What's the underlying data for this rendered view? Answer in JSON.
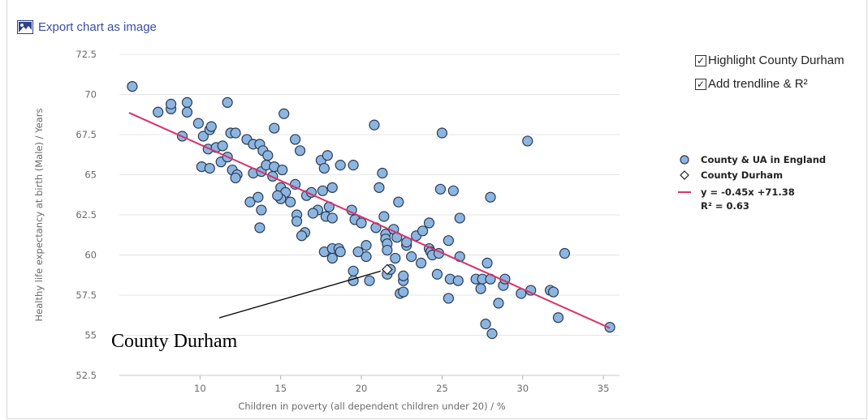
{
  "toolbar": {
    "export_label": "Export chart as image",
    "export_icon": "image-icon"
  },
  "options": [
    {
      "label": "Highlight County Durham",
      "checked": true,
      "check": "✓"
    },
    {
      "label": "Add trendline & R²",
      "checked": true,
      "check": "✓"
    }
  ],
  "legend": {
    "counties": "County & UA in England",
    "highlight": "County Durham",
    "trend_eq": "y = -0.45x +71.38",
    "trend_r2": "R² = 0.63"
  },
  "annotation": "County Durham",
  "colors": {
    "point_fill": "#8cb6e0",
    "point_stroke": "#2a3a55",
    "trend": "#d8336b",
    "grid": "#e4e4e4",
    "link": "#3a4fa0"
  },
  "chart_data": {
    "type": "scatter",
    "xlabel": "Children in poverty (all dependent children under 20) / %",
    "ylabel": "Healthy life expectancy at birth (Male) / Years",
    "xlim": [
      5,
      36
    ],
    "ylim": [
      52.5,
      72.5
    ],
    "xticks": [
      10,
      15,
      20,
      25,
      30,
      35
    ],
    "yticks": [
      52.5,
      55,
      57.5,
      60,
      62.5,
      65,
      67.5,
      70,
      72.5
    ],
    "grid": "horizontal",
    "legend_position": "right",
    "trendline": {
      "slope": -0.45,
      "intercept": 71.38,
      "r2": 0.63,
      "x_range": [
        5.6,
        35.4
      ]
    },
    "highlight_point": {
      "name": "County Durham",
      "x": 21.6,
      "y": 59.1
    },
    "series": [
      {
        "name": "County & UA in England",
        "points": [
          [
            5.8,
            70.5
          ],
          [
            7.4,
            68.9
          ],
          [
            8.2,
            69.1
          ],
          [
            8.2,
            69.4
          ],
          [
            8.9,
            67.4
          ],
          [
            9.2,
            69.5
          ],
          [
            9.2,
            68.9
          ],
          [
            9.9,
            68.2
          ],
          [
            10.2,
            67.4
          ],
          [
            10.6,
            67.8
          ],
          [
            10.7,
            68.0
          ],
          [
            10.5,
            66.6
          ],
          [
            11.0,
            66.7
          ],
          [
            11.4,
            66.8
          ],
          [
            11.3,
            65.8
          ],
          [
            11.7,
            69.5
          ],
          [
            11.7,
            66.1
          ],
          [
            11.9,
            67.6
          ],
          [
            12.2,
            67.6
          ],
          [
            12.0,
            65.3
          ],
          [
            12.3,
            65.0
          ],
          [
            12.2,
            64.8
          ],
          [
            10.1,
            65.5
          ],
          [
            10.6,
            65.4
          ],
          [
            12.9,
            67.2
          ],
          [
            13.3,
            66.9
          ],
          [
            13.7,
            66.9
          ],
          [
            13.9,
            66.5
          ],
          [
            14.2,
            66.2
          ],
          [
            14.6,
            67.9
          ],
          [
            13.3,
            65.1
          ],
          [
            13.8,
            65.2
          ],
          [
            14.1,
            65.6
          ],
          [
            14.6,
            65.5
          ],
          [
            15.1,
            65.3
          ],
          [
            14.5,
            64.9
          ],
          [
            15.0,
            64.2
          ],
          [
            15.3,
            63.9
          ],
          [
            15.0,
            63.5
          ],
          [
            14.8,
            63.7
          ],
          [
            15.2,
            68.8
          ],
          [
            13.1,
            63.3
          ],
          [
            13.6,
            63.6
          ],
          [
            13.8,
            62.8
          ],
          [
            15.6,
            63.3
          ],
          [
            15.9,
            67.2
          ],
          [
            16.2,
            66.5
          ],
          [
            17.5,
            65.9
          ],
          [
            17.7,
            65.4
          ],
          [
            17.9,
            66.2
          ],
          [
            15.9,
            64.4
          ],
          [
            16.6,
            63.7
          ],
          [
            16.5,
            61.4
          ],
          [
            16.3,
            61.2
          ],
          [
            16.0,
            62.5
          ],
          [
            16.0,
            62.1
          ],
          [
            16.9,
            63.9
          ],
          [
            17.3,
            62.8
          ],
          [
            17.0,
            62.6
          ],
          [
            17.6,
            64.0
          ],
          [
            18.2,
            64.2
          ],
          [
            18.7,
            65.6
          ],
          [
            19.5,
            65.6
          ],
          [
            18.0,
            63.0
          ],
          [
            17.8,
            62.4
          ],
          [
            18.2,
            62.3
          ],
          [
            17.7,
            60.2
          ],
          [
            18.2,
            60.4
          ],
          [
            18.6,
            60.4
          ],
          [
            18.7,
            60.2
          ],
          [
            18.2,
            59.8
          ],
          [
            13.7,
            61.7
          ],
          [
            19.5,
            59.0
          ],
          [
            19.5,
            58.4
          ],
          [
            19.6,
            62.2
          ],
          [
            19.4,
            62.8
          ],
          [
            20.0,
            62.0
          ],
          [
            20.3,
            60.6
          ],
          [
            20.5,
            58.4
          ],
          [
            20.9,
            61.7
          ],
          [
            20.8,
            68.1
          ],
          [
            21.1,
            64.2
          ],
          [
            21.3,
            65.1
          ],
          [
            21.4,
            62.4
          ],
          [
            21.5,
            61.3
          ],
          [
            21.5,
            61.0
          ],
          [
            21.6,
            60.7
          ],
          [
            21.6,
            60.3
          ],
          [
            21.6,
            58.8
          ],
          [
            21.8,
            59.1
          ],
          [
            22.0,
            61.6
          ],
          [
            22.2,
            61.1
          ],
          [
            22.3,
            63.3
          ],
          [
            22.1,
            59.8
          ],
          [
            22.4,
            57.6
          ],
          [
            22.6,
            57.7
          ],
          [
            22.6,
            58.4
          ],
          [
            22.6,
            58.7
          ],
          [
            22.8,
            60.6
          ],
          [
            22.8,
            60.8
          ],
          [
            23.1,
            59.9
          ],
          [
            23.4,
            61.2
          ],
          [
            23.8,
            61.5
          ],
          [
            23.7,
            59.5
          ],
          [
            24.2,
            62.0
          ],
          [
            24.2,
            60.4
          ],
          [
            24.3,
            60.2
          ],
          [
            24.4,
            60.0
          ],
          [
            24.7,
            58.8
          ],
          [
            24.8,
            60.1
          ],
          [
            24.9,
            64.1
          ],
          [
            25.0,
            67.6
          ],
          [
            25.4,
            60.9
          ],
          [
            25.5,
            58.5
          ],
          [
            25.4,
            57.3
          ],
          [
            25.7,
            64.0
          ],
          [
            26.1,
            62.3
          ],
          [
            26.1,
            59.9
          ],
          [
            26.0,
            58.4
          ],
          [
            27.1,
            58.5
          ],
          [
            27.5,
            58.5
          ],
          [
            27.4,
            57.9
          ],
          [
            27.7,
            55.7
          ],
          [
            27.8,
            59.5
          ],
          [
            28.0,
            58.5
          ],
          [
            28.1,
            55.1
          ],
          [
            28.0,
            63.6
          ],
          [
            28.5,
            57.0
          ],
          [
            28.8,
            58.1
          ],
          [
            28.9,
            58.5
          ],
          [
            29.9,
            57.6
          ],
          [
            30.3,
            67.1
          ],
          [
            30.5,
            57.8
          ],
          [
            31.7,
            57.8
          ],
          [
            31.9,
            57.7
          ],
          [
            32.2,
            56.1
          ],
          [
            32.6,
            60.1
          ],
          [
            35.4,
            55.5
          ],
          [
            20.3,
            59.9
          ],
          [
            19.8,
            60.2
          ]
        ]
      }
    ]
  }
}
